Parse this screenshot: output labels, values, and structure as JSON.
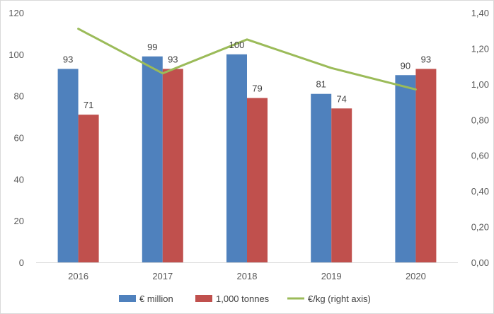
{
  "chart_data": {
    "type": "bar",
    "categories": [
      "2016",
      "2017",
      "2018",
      "2019",
      "2020"
    ],
    "series": [
      {
        "name": "€ million",
        "type": "bar",
        "axis": "left",
        "values": [
          93,
          99,
          100,
          81,
          90
        ],
        "labels": [
          "93",
          "99",
          "100",
          "81",
          "90"
        ],
        "color": "#4f81bd"
      },
      {
        "name": "1,000 tonnes",
        "type": "bar",
        "axis": "left",
        "values": [
          71,
          93,
          79,
          74,
          93
        ],
        "labels": [
          "71",
          "93",
          "79",
          "74",
          "93"
        ],
        "color": "#c0504d"
      },
      {
        "name": "€/kg (right axis)",
        "type": "line",
        "axis": "right",
        "values": [
          1.31,
          1.06,
          1.25,
          1.09,
          0.97
        ],
        "color": "#9bbb59"
      }
    ],
    "ylim": [
      0,
      120
    ],
    "y_ticks": [
      "0",
      "20",
      "40",
      "60",
      "80",
      "100",
      "120"
    ],
    "y2lim": [
      0,
      1.4
    ],
    "y2_ticks": [
      "0,00",
      "0,20",
      "0,40",
      "0,60",
      "0,80",
      "1,00",
      "1,20",
      "1,40"
    ],
    "grid": false,
    "legend_position": "bottom"
  }
}
